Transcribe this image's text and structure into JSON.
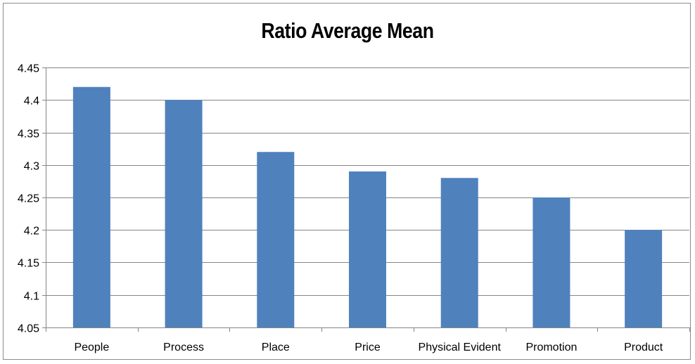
{
  "chart_data": {
    "type": "bar",
    "title": "Ratio Average Mean",
    "xlabel": "",
    "ylabel": "",
    "categories": [
      "People",
      "Process",
      "Place",
      "Price",
      "Physical Evident",
      "Promotion",
      "Product"
    ],
    "values": [
      4.42,
      4.4,
      4.32,
      4.29,
      4.28,
      4.25,
      4.2
    ],
    "ylim": [
      4.05,
      4.45
    ],
    "yticks": [
      "4.05",
      "4.1",
      "4.15",
      "4.2",
      "4.25",
      "4.3",
      "4.35",
      "4.4",
      "4.45"
    ],
    "grid": true,
    "legend": "none",
    "colors": {
      "bar": "#4f81bd",
      "grid": "#868686",
      "axis": "#868686"
    }
  }
}
